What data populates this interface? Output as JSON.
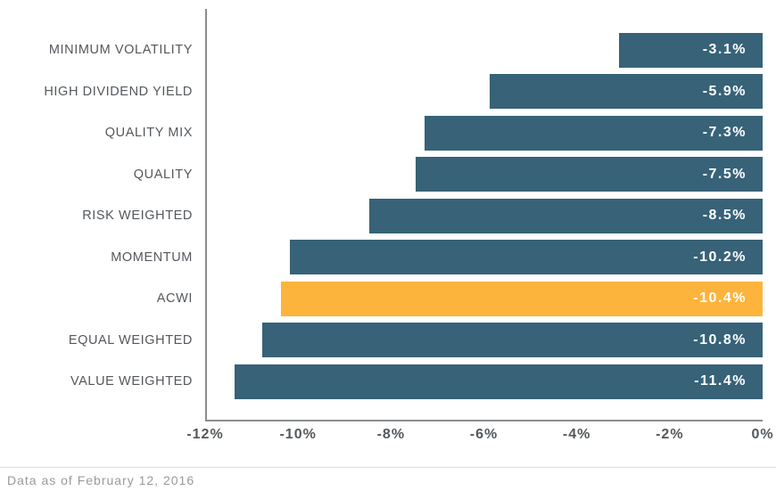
{
  "chart_data": {
    "type": "bar",
    "orientation": "horizontal",
    "title": "",
    "categories": [
      "MINIMUM VOLATILITY",
      "HIGH DIVIDEND YIELD",
      "QUALITY MIX",
      "QUALITY",
      "RISK WEIGHTED",
      "MOMENTUM",
      "ACWI",
      "EQUAL WEIGHTED",
      "VALUE WEIGHTED"
    ],
    "values": [
      -3.1,
      -5.9,
      -7.3,
      -7.5,
      -8.5,
      -10.2,
      -10.4,
      -10.8,
      -11.4
    ],
    "value_labels": [
      "-3.1%",
      "-5.9%",
      "-7.3%",
      "-7.5%",
      "-8.5%",
      "-10.2%",
      "-10.4%",
      "-10.8%",
      "-11.4%"
    ],
    "highlight_category": "ACWI",
    "x_ticks": [
      "-12%",
      "-10%",
      "-8%",
      "-6%",
      "-4%",
      "-2%",
      "0%"
    ],
    "xlim": [
      -12,
      0
    ],
    "grid": false,
    "legend": "none",
    "colors": {
      "bar": "#376278",
      "highlight": "#fdb43c",
      "axis_line": "#8a8d8f",
      "category_label": "#54585c",
      "tick_label": "#54585c",
      "value_label": "#ffffff"
    }
  },
  "footer": {
    "note": "Data as of February 12, 2016"
  }
}
